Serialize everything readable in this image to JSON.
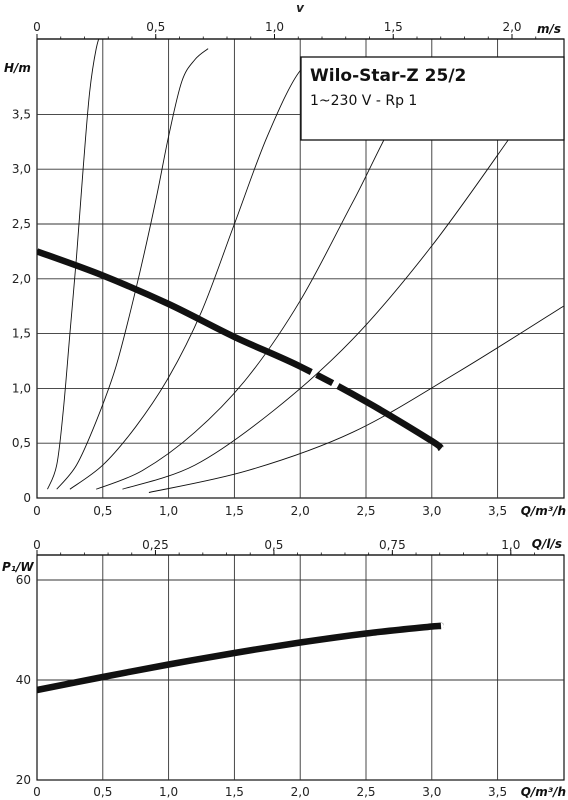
{
  "chart_data": [
    {
      "type": "line",
      "title": "Wilo-Star-Z 25/2",
      "subtitle": "1~230 V - Rp 1",
      "xlabel": "Q/m³/h",
      "ylabel": "H/m",
      "top_axis": {
        "label": "m/s",
        "symbol": "v",
        "ticks": [
          {
            "v": 0,
            "label": "0"
          },
          {
            "v": 0.5,
            "label": "0,5"
          },
          {
            "v": 1.0,
            "label": "1,0"
          },
          {
            "v": 1.5,
            "label": "1,5"
          },
          {
            "v": 2.0,
            "label": "2,0"
          }
        ]
      },
      "xlim": [
        0,
        4.0
      ],
      "ylim": [
        0,
        4.0
      ],
      "x_ticks": [
        {
          "v": 0,
          "label": "0"
        },
        {
          "v": 0.5,
          "label": "0,5"
        },
        {
          "v": 1.0,
          "label": "1,0"
        },
        {
          "v": 1.5,
          "label": "1,5"
        },
        {
          "v": 2.0,
          "label": "2,0"
        },
        {
          "v": 2.5,
          "label": "2,5"
        },
        {
          "v": 3.0,
          "label": "3,0"
        },
        {
          "v": 3.5,
          "label": "3,5"
        }
      ],
      "y_ticks": [
        {
          "v": 0,
          "label": "0"
        },
        {
          "v": 0.5,
          "label": "0,5"
        },
        {
          "v": 1.0,
          "label": "1,0"
        },
        {
          "v": 1.5,
          "label": "1,5"
        },
        {
          "v": 2.0,
          "label": "2,0"
        },
        {
          "v": 2.5,
          "label": "2,5"
        },
        {
          "v": 3.0,
          "label": "3,0"
        },
        {
          "v": 3.5,
          "label": "3,5"
        }
      ],
      "grid": true,
      "series": [
        {
          "x": [
            0,
            0.5,
            1.0,
            1.5,
            2.0,
            2.5,
            3.0,
            3.07
          ],
          "y": [
            2.25,
            2.03,
            1.77,
            1.47,
            1.2,
            0.88,
            0.52,
            0.45
          ]
        }
      ],
      "system_curves": [
        {
          "x": [
            0.08,
            0.15,
            0.2,
            0.25,
            0.3,
            0.35,
            0.4,
            0.45,
            0.5
          ],
          "y": [
            0.08,
            0.3,
            0.8,
            1.5,
            2.2,
            3.0,
            3.7,
            4.1,
            4.3
          ]
        },
        {
          "x": [
            0.15,
            0.3,
            0.45,
            0.6,
            0.75,
            0.9,
            1.0,
            1.1,
            1.2,
            1.3
          ],
          "y": [
            0.08,
            0.3,
            0.7,
            1.2,
            1.9,
            2.7,
            3.3,
            3.8,
            4.0,
            4.1
          ]
        },
        {
          "x": [
            0.25,
            0.5,
            0.75,
            1.0,
            1.25,
            1.5,
            1.75,
            2.0,
            2.2
          ],
          "y": [
            0.08,
            0.3,
            0.65,
            1.1,
            1.7,
            2.5,
            3.3,
            3.9,
            4.0
          ]
        },
        {
          "x": [
            0.45,
            0.8,
            1.2,
            1.6,
            2.0,
            2.4,
            2.8,
            3.2
          ],
          "y": [
            0.08,
            0.25,
            0.6,
            1.1,
            1.8,
            2.7,
            3.6,
            4.0
          ]
        },
        {
          "x": [
            0.65,
            1.2,
            1.8,
            2.4,
            3.0,
            3.6,
            4.0
          ],
          "y": [
            0.08,
            0.3,
            0.8,
            1.45,
            2.3,
            3.3,
            4.0
          ]
        },
        {
          "x": [
            0.85,
            1.6,
            2.4,
            3.2,
            4.0
          ],
          "y": [
            0.05,
            0.25,
            0.6,
            1.15,
            1.75
          ]
        }
      ]
    },
    {
      "type": "line",
      "xlabel": "Q/m³/h",
      "ylabel": "P₁/W",
      "top_axis": {
        "label": "Q/l/s",
        "ticks": [
          {
            "v": 0,
            "label": "0"
          },
          {
            "v": 0.25,
            "label": "0,25"
          },
          {
            "v": 0.5,
            "label": "0,5"
          },
          {
            "v": 0.75,
            "label": "0,75"
          },
          {
            "v": 1.0,
            "label": "1,0"
          }
        ]
      },
      "xlim": [
        0,
        4.0
      ],
      "ylim": [
        20,
        65
      ],
      "x_ticks": [
        {
          "v": 0,
          "label": "0"
        },
        {
          "v": 0.5,
          "label": "0,5"
        },
        {
          "v": 1.0,
          "label": "1,0"
        },
        {
          "v": 1.5,
          "label": "1,5"
        },
        {
          "v": 2.0,
          "label": "2,0"
        },
        {
          "v": 2.5,
          "label": "2,5"
        },
        {
          "v": 3.0,
          "label": "3,0"
        },
        {
          "v": 3.5,
          "label": "3,5"
        }
      ],
      "y_ticks": [
        {
          "v": 20,
          "label": "20"
        },
        {
          "v": 40,
          "label": "40"
        },
        {
          "v": 60,
          "label": "60"
        }
      ],
      "grid": true,
      "series": [
        {
          "x": [
            0,
            0.5,
            1.0,
            1.5,
            2.0,
            2.5,
            3.0,
            3.07
          ],
          "y": [
            38.0,
            40.6,
            43.1,
            45.4,
            47.5,
            49.3,
            50.7,
            50.8
          ]
        }
      ]
    }
  ]
}
